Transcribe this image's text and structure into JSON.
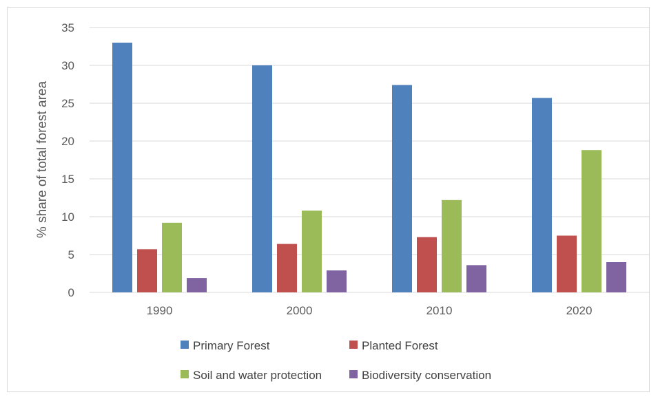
{
  "chart_data": {
    "type": "bar",
    "title": "",
    "xlabel": "",
    "ylabel": "% share of total forest area",
    "categories": [
      "1990",
      "2000",
      "2010",
      "2020"
    ],
    "ylim": [
      0,
      35
    ],
    "yticks": [
      0,
      5,
      10,
      15,
      20,
      25,
      30,
      35
    ],
    "grid": true,
    "legend_position": "bottom",
    "series": [
      {
        "name": "Primary Forest",
        "color": "#4F81BD",
        "values": [
          33.0,
          30.0,
          27.4,
          25.7
        ]
      },
      {
        "name": "Planted Forest",
        "color": "#C0504D",
        "values": [
          5.7,
          6.4,
          7.3,
          7.5
        ]
      },
      {
        "name": "Soil and water protection",
        "color": "#9BBB59",
        "values": [
          9.2,
          10.8,
          12.2,
          18.8
        ]
      },
      {
        "name": "Biodiversity conservation",
        "color": "#8064A2",
        "values": [
          1.9,
          2.9,
          3.6,
          4.0
        ]
      }
    ]
  }
}
